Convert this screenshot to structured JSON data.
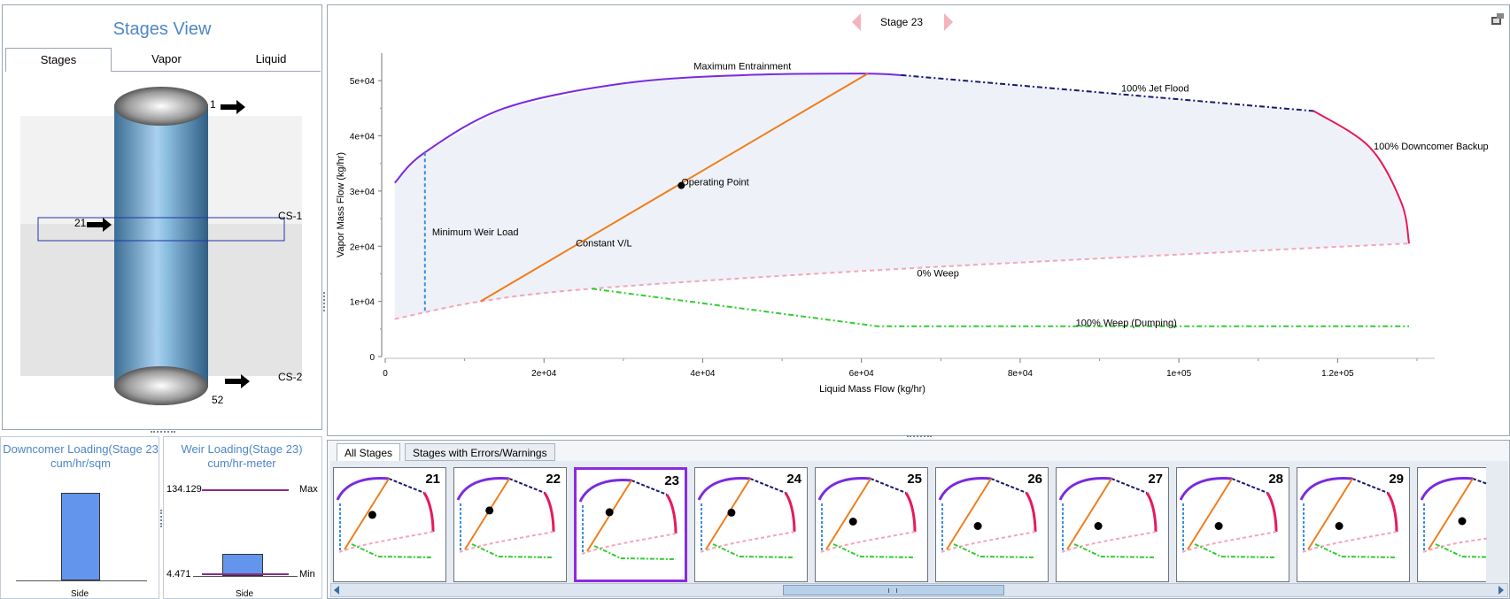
{
  "left": {
    "title": "Stages View",
    "tabs": [
      "Stages",
      "Vapor",
      "Liquid"
    ],
    "column": {
      "stream_top": "1",
      "stream_mid": "21",
      "stream_bottom": "52",
      "section_1": "CS-1",
      "section_2": "CS-2"
    }
  },
  "downcomer": {
    "title": "Downcomer Loading(Stage 23",
    "units": "cum/hr/sqm",
    "xlabel": "Side"
  },
  "weir": {
    "title": "Weir Loading(Stage 23)",
    "units": "cum/hr-meter",
    "max_value": "134.129",
    "min_value": "4.471",
    "max_label": "Max",
    "min_label": "Min",
    "xlabel": "Side"
  },
  "nav": {
    "stage_label": "Stage 23"
  },
  "chart_data": {
    "type": "line",
    "title": "Stage 23",
    "xlabel": "Liquid Mass Flow (kg/hr)",
    "ylabel": "Vapor Mass Flow (kg/hr)",
    "xlim": [
      0,
      130000
    ],
    "ylim": [
      0,
      55000
    ],
    "x_ticks": [
      "0",
      "2e+04",
      "4e+04",
      "6e+04",
      "8e+04",
      "1e+05",
      "1.2e+05"
    ],
    "y_ticks": [
      "0",
      "1e+04",
      "2e+04",
      "3e+04",
      "4e+04",
      "5e+04"
    ],
    "series": [
      {
        "name": "Maximum Entrainment",
        "color": "#7a2ae0",
        "x": [
          1200,
          5000,
          15000,
          30000,
          45000,
          60000,
          65000
        ],
        "y": [
          31500,
          37000,
          45000,
          49500,
          51000,
          51300,
          51000
        ]
      },
      {
        "name": "100% Jet Flood",
        "color": "#1a1a6e",
        "x": [
          65000,
          117000
        ],
        "y": [
          51000,
          44500
        ]
      },
      {
        "name": "100% Downcomer Backup",
        "color": "#e8195a",
        "x": [
          117000,
          124000,
          128000,
          129000
        ],
        "y": [
          44500,
          38000,
          28000,
          20500
        ]
      },
      {
        "name": "0% Weep",
        "color": "#f4a6b8",
        "x": [
          1200,
          12000,
          26000,
          60000,
          100000,
          129000
        ],
        "y": [
          6800,
          10000,
          12300,
          15500,
          18500,
          20500
        ]
      },
      {
        "name": "100% Weep (Dumping)",
        "color": "#33cc33",
        "x": [
          26000,
          62000,
          129000
        ],
        "y": [
          12300,
          5500,
          5500
        ]
      },
      {
        "name": "Minimum Weir Load",
        "color": "#3a8ee6",
        "x": [
          5000,
          5000
        ],
        "y": [
          8300,
          37000
        ]
      },
      {
        "name": "Constant V/L",
        "color": "#f07d1a",
        "x": [
          12000,
          60800
        ],
        "y": [
          10000,
          51300
        ]
      }
    ],
    "annotations": [
      {
        "text": "Maximum Entrainment",
        "x": 45000,
        "y": 52000
      },
      {
        "text": "100% Jet Flood",
        "x": 97000,
        "y": 48000
      },
      {
        "text": "100% Downcomer Backup",
        "x": 139000,
        "y": 37500
      },
      {
        "text": "Operating Point",
        "x": 37300,
        "y": 31000
      },
      {
        "text": "Minimum Weir Load",
        "x": 5900,
        "y": 22000
      },
      {
        "text": "Constant V/L",
        "x": 24000,
        "y": 20000
      },
      {
        "text": "0% Weep",
        "x": 67000,
        "y": 14500
      },
      {
        "text": "100% Weep (Dumping)",
        "x": 87000,
        "y": 5500
      }
    ],
    "operating_point": {
      "x": 37300,
      "y": 31000
    }
  },
  "bottom": {
    "tabs": [
      "All Stages",
      "Stages with Errors/Warnings"
    ],
    "thumbnails": [
      "21",
      "22",
      "23",
      "24",
      "25",
      "26",
      "27",
      "28",
      "29"
    ],
    "selected": "23"
  }
}
